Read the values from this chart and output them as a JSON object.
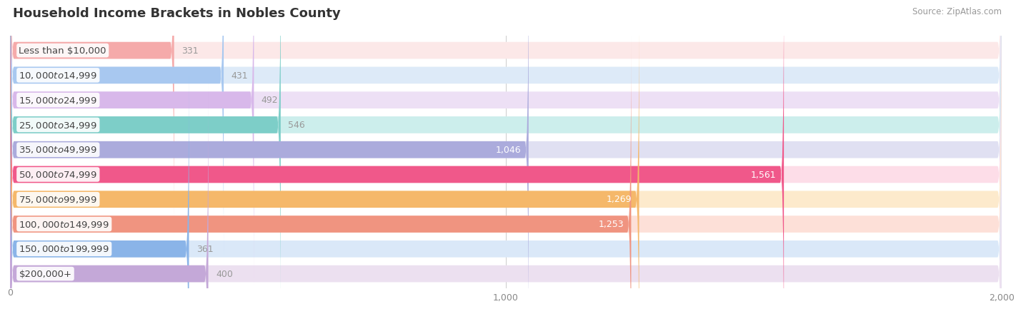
{
  "title": "Household Income Brackets in Nobles County",
  "source": "Source: ZipAtlas.com",
  "categories": [
    "Less than $10,000",
    "$10,000 to $14,999",
    "$15,000 to $24,999",
    "$25,000 to $34,999",
    "$35,000 to $49,999",
    "$50,000 to $74,999",
    "$75,000 to $99,999",
    "$100,000 to $149,999",
    "$150,000 to $199,999",
    "$200,000+"
  ],
  "values": [
    331,
    431,
    492,
    546,
    1046,
    1561,
    1269,
    1253,
    361,
    400
  ],
  "bar_colors": [
    "#f5aaaa",
    "#a8c8f0",
    "#d8b8ea",
    "#7dcec8",
    "#ababdc",
    "#f0588a",
    "#f5b86a",
    "#f09480",
    "#8ab4e8",
    "#c4a8d8"
  ],
  "bar_bg_colors": [
    "#fce8e8",
    "#ddeaf8",
    "#ede0f5",
    "#cceeec",
    "#e0e0f2",
    "#fddde8",
    "#fdeacc",
    "#fde0d8",
    "#dae8f8",
    "#ece0f0"
  ],
  "xlim": [
    0,
    2000
  ],
  "xticks": [
    0,
    1000,
    2000
  ],
  "background_color": "#ffffff",
  "bar_height": 0.68,
  "value_label_color_dark": "#999999",
  "value_label_color_light": "#ffffff",
  "title_fontsize": 13,
  "source_fontsize": 8.5,
  "label_fontsize": 9.5,
  "value_fontsize": 9,
  "tick_fontsize": 9,
  "label_threshold": 700
}
